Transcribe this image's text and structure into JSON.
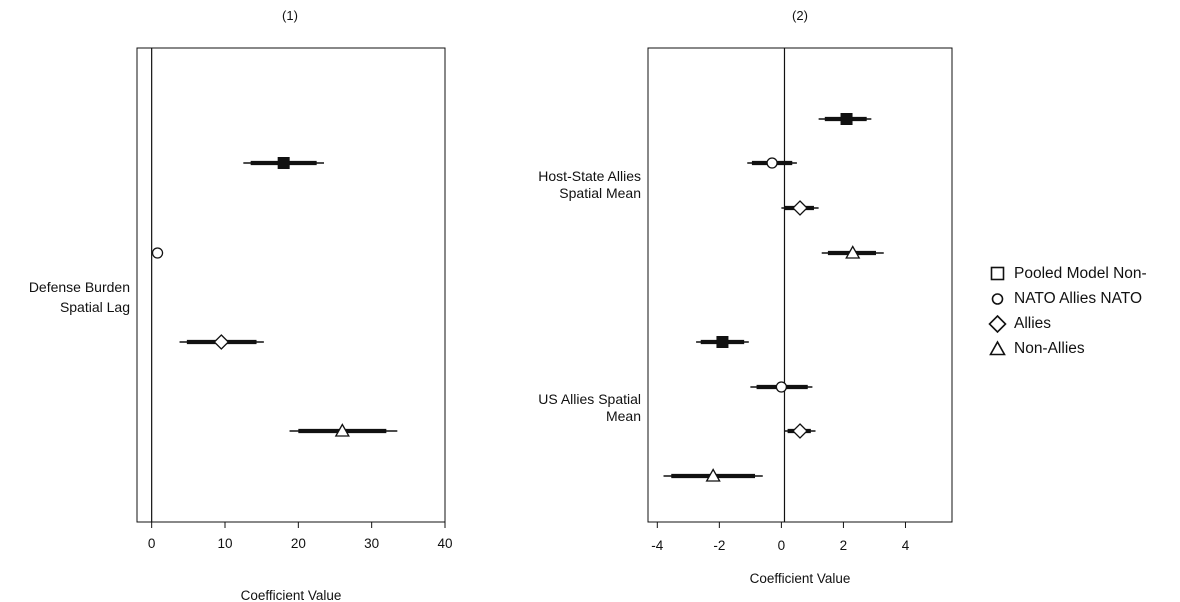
{
  "chart_data": [
    {
      "type": "scatter",
      "panel_title": "(1)",
      "xlabel": "Coefficient Value",
      "xlim": [
        -2,
        40
      ],
      "x_ticks": [
        0,
        10,
        20,
        30,
        40
      ],
      "x_tick_labels": [
        "0",
        "10",
        "20",
        "30",
        "40"
      ],
      "reference_line_x": 0,
      "groups": [
        {
          "label": "Defense Burden Spatial Lag",
          "label_lines": [
            "Defense Burden",
            "Spatial Lag"
          ],
          "points": [
            {
              "series": "Pooled Model Non-NATO",
              "marker": "square",
              "estimate": 18.0,
              "ci95": [
                12.5,
                23.5
              ],
              "ci90": [
                13.5,
                22.5
              ]
            },
            {
              "series": "NATO Allies",
              "marker": "circle",
              "estimate": 0.8,
              "ci95": [
                0.3,
                1.3
              ],
              "ci90": [
                0.5,
                1.1
              ]
            },
            {
              "series": "Allies",
              "marker": "diamond",
              "estimate": 9.5,
              "ci95": [
                3.8,
                15.3
              ],
              "ci90": [
                4.8,
                14.3
              ]
            },
            {
              "series": "Non-Allies",
              "marker": "triangle",
              "estimate": 26.0,
              "ci95": [
                18.8,
                33.5
              ],
              "ci90": [
                20.0,
                32.0
              ]
            }
          ]
        }
      ]
    },
    {
      "type": "scatter",
      "panel_title": "(2)",
      "xlabel": "Coefficient Value",
      "xlim": [
        -4.3,
        5.5
      ],
      "x_ticks": [
        -4,
        -2,
        0,
        2,
        4
      ],
      "x_tick_labels": [
        "-4",
        "-2",
        "0",
        "2",
        "4"
      ],
      "reference_line_x": 0.1,
      "groups": [
        {
          "label": "Host-State Allies Spatial Mean",
          "label_lines": [
            "Host-State Allies",
            "Spatial Mean"
          ],
          "points": [
            {
              "series": "Pooled Model Non-NATO",
              "marker": "square",
              "estimate": 2.1,
              "ci95": [
                1.2,
                2.9
              ],
              "ci90": [
                1.4,
                2.75
              ]
            },
            {
              "series": "NATO Allies",
              "marker": "circle",
              "estimate": -0.3,
              "ci95": [
                -1.1,
                0.5
              ],
              "ci90": [
                -0.95,
                0.35
              ]
            },
            {
              "series": "Allies",
              "marker": "diamond",
              "estimate": 0.6,
              "ci95": [
                0.0,
                1.2
              ],
              "ci90": [
                0.1,
                1.05
              ]
            },
            {
              "series": "Non-Allies",
              "marker": "triangle",
              "estimate": 2.3,
              "ci95": [
                1.3,
                3.3
              ],
              "ci90": [
                1.5,
                3.05
              ]
            }
          ]
        },
        {
          "label": "US Allies Spatial Mean",
          "label_lines": [
            "US Allies Spatial",
            "Mean"
          ],
          "points": [
            {
              "series": "Pooled Model Non-NATO",
              "marker": "square",
              "estimate": -1.9,
              "ci95": [
                -2.75,
                -1.05
              ],
              "ci90": [
                -2.6,
                -1.2
              ]
            },
            {
              "series": "NATO Allies",
              "marker": "circle",
              "estimate": 0.0,
              "ci95": [
                -1.0,
                1.0
              ],
              "ci90": [
                -0.8,
                0.85
              ]
            },
            {
              "series": "Allies",
              "marker": "diamond",
              "estimate": 0.6,
              "ci95": [
                0.1,
                1.1
              ],
              "ci90": [
                0.2,
                0.95
              ]
            },
            {
              "series": "Non-Allies",
              "marker": "triangle",
              "estimate": -2.2,
              "ci95": [
                -3.8,
                -0.6
              ],
              "ci90": [
                -3.55,
                -0.85
              ]
            }
          ]
        }
      ]
    }
  ],
  "legend": {
    "items": [
      {
        "marker": "square",
        "label": "Pooled Model Non-"
      },
      {
        "marker": "circle",
        "label": "NATO Allies  NATO"
      },
      {
        "marker": "diamond",
        "label": "Allies"
      },
      {
        "marker": "triangle",
        "label": "Non-Allies"
      }
    ]
  }
}
